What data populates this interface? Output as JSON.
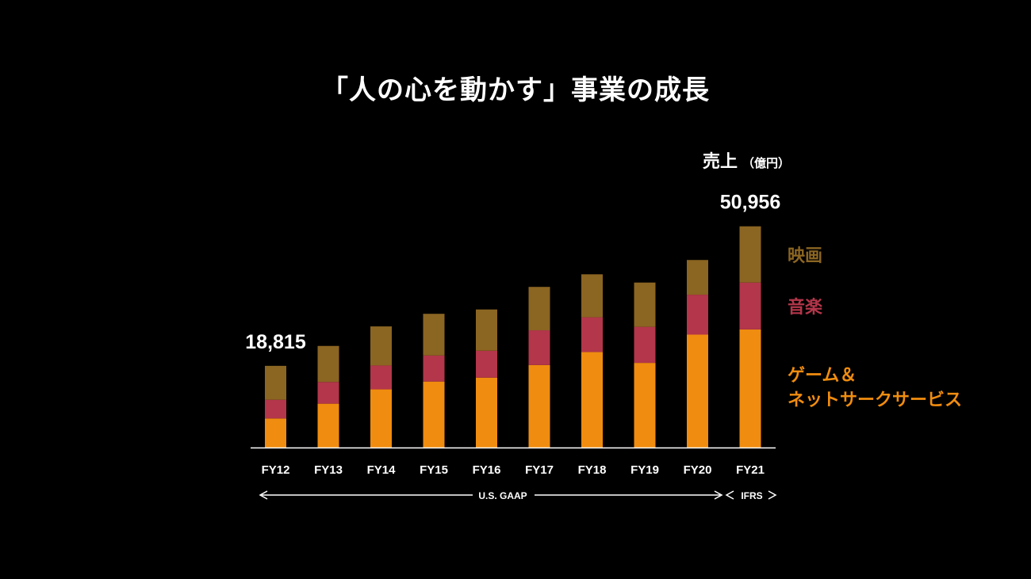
{
  "title": "「人の心を動かす」事業の成長",
  "unit_label": "売上",
  "unit_sub": "（億円）",
  "colors": {
    "game": "#F08C0F",
    "music": "#B3364A",
    "movie": "#8B6522",
    "background": "#000000"
  },
  "legend": {
    "movie": "映画",
    "music": "音楽",
    "game_line1": "ゲーム＆",
    "game_line2": "ネットサークサービス"
  },
  "standards": {
    "usgaap": "U.S. GAAP",
    "ifrs": "IFRS"
  },
  "chart_data": {
    "type": "bar",
    "stacked": true,
    "categories": [
      "FY12",
      "FY13",
      "FY14",
      "FY15",
      "FY16",
      "FY17",
      "FY18",
      "FY19",
      "FY20",
      "FY21"
    ],
    "series": [
      {
        "key": "game",
        "values": [
          6700,
          10100,
          13400,
          15200,
          16100,
          19000,
          22000,
          19500,
          26000,
          27200
        ]
      },
      {
        "key": "music",
        "values": [
          4300,
          5000,
          5500,
          6000,
          6200,
          8000,
          8000,
          8300,
          9200,
          10800
        ]
      },
      {
        "key": "movie",
        "values": [
          7815,
          8300,
          9000,
          9600,
          9500,
          10000,
          9900,
          10200,
          8000,
          12956
        ]
      }
    ],
    "totals_labeled": {
      "FY12": "18,815",
      "FY21": "50,956"
    },
    "ylim": [
      0,
      52000
    ]
  }
}
